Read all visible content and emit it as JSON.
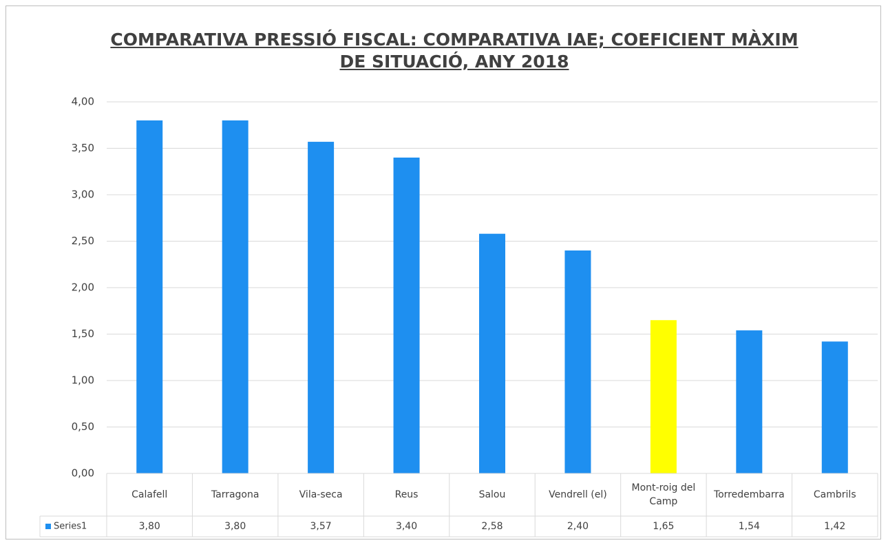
{
  "chart_data": {
    "type": "bar",
    "title": "COMPARATIVA PRESSIÓ FISCAL: COMPARATIVA IAE; COEFICIENT MÀXIM DE SITUACIÓ, ANY 2018",
    "categories": [
      "Calafell",
      "Tarragona",
      "Vila-seca",
      "Reus",
      "Salou",
      "Vendrell (el)",
      "Mont-roig del Camp",
      "Torredembarra",
      "Cambrils"
    ],
    "series": [
      {
        "name": "Series1",
        "color": "#1e8ff0",
        "point_colors": [
          "#1e8ff0",
          "#1e8ff0",
          "#1e8ff0",
          "#1e8ff0",
          "#1e8ff0",
          "#1e8ff0",
          "#ffff00",
          "#1e8ff0",
          "#1e8ff0"
        ],
        "values": [
          3.8,
          3.8,
          3.57,
          3.4,
          2.58,
          2.4,
          1.65,
          1.54,
          1.42
        ],
        "value_labels": [
          "3,80",
          "3,80",
          "3,57",
          "3,40",
          "2,58",
          "2,40",
          "1,65",
          "1,54",
          "1,42"
        ]
      }
    ],
    "ylim": [
      0,
      4
    ],
    "yticks": [
      {
        "value": 0,
        "label": "0,00"
      },
      {
        "value": 0.5,
        "label": "0,50"
      },
      {
        "value": 1,
        "label": "1,00"
      },
      {
        "value": 1.5,
        "label": "1,50"
      },
      {
        "value": 2,
        "label": "2,00"
      },
      {
        "value": 2.5,
        "label": "2,50"
      },
      {
        "value": 3,
        "label": "3,00"
      },
      {
        "value": 3.5,
        "label": "3,50"
      },
      {
        "value": 4,
        "label": "4,00"
      }
    ],
    "grid": true,
    "data_table": true
  }
}
